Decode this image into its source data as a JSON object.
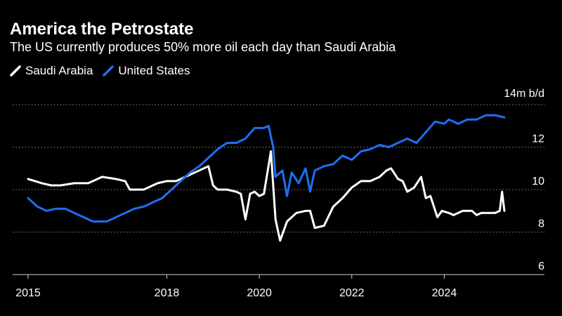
{
  "chart_data": {
    "type": "line",
    "title": "America the Petrostate",
    "subtitle": "The US currently produces 50% more oil each day than Saudi Arabia",
    "unit_label": "14m b/d",
    "xlabel": "",
    "ylabel": "",
    "ylim": [
      6,
      14
    ],
    "y_ticks": [
      6,
      8,
      10,
      12
    ],
    "x_ticks": [
      "2015",
      "2018",
      "2020",
      "2022",
      "2024"
    ],
    "xlim": [
      2015.0,
      2025.3
    ],
    "legend_position": "top-left",
    "grid": "dotted horizontal",
    "series": [
      {
        "name": "Saudi Arabia",
        "color": "#ffffff",
        "points": [
          [
            2015.0,
            10.5
          ],
          [
            2015.3,
            10.3
          ],
          [
            2015.5,
            10.2
          ],
          [
            2015.7,
            10.2
          ],
          [
            2016.0,
            10.3
          ],
          [
            2016.3,
            10.3
          ],
          [
            2016.6,
            10.6
          ],
          [
            2016.9,
            10.5
          ],
          [
            2017.1,
            10.4
          ],
          [
            2017.2,
            10.0
          ],
          [
            2017.5,
            10.0
          ],
          [
            2017.8,
            10.3
          ],
          [
            2018.0,
            10.4
          ],
          [
            2018.2,
            10.4
          ],
          [
            2018.4,
            10.6
          ],
          [
            2018.6,
            10.8
          ],
          [
            2018.8,
            11.0
          ],
          [
            2018.9,
            11.1
          ],
          [
            2019.0,
            10.2
          ],
          [
            2019.1,
            10.0
          ],
          [
            2019.3,
            10.0
          ],
          [
            2019.5,
            9.9
          ],
          [
            2019.6,
            9.8
          ],
          [
            2019.7,
            8.6
          ],
          [
            2019.8,
            9.8
          ],
          [
            2019.9,
            9.9
          ],
          [
            2020.0,
            9.7
          ],
          [
            2020.1,
            9.8
          ],
          [
            2020.25,
            11.8
          ],
          [
            2020.35,
            8.6
          ],
          [
            2020.45,
            7.6
          ],
          [
            2020.6,
            8.5
          ],
          [
            2020.8,
            8.9
          ],
          [
            2021.0,
            9.0
          ],
          [
            2021.1,
            9.0
          ],
          [
            2021.2,
            8.2
          ],
          [
            2021.4,
            8.3
          ],
          [
            2021.6,
            9.2
          ],
          [
            2021.8,
            9.6
          ],
          [
            2022.0,
            10.1
          ],
          [
            2022.2,
            10.4
          ],
          [
            2022.4,
            10.4
          ],
          [
            2022.6,
            10.6
          ],
          [
            2022.75,
            10.9
          ],
          [
            2022.85,
            11.0
          ],
          [
            2023.0,
            10.5
          ],
          [
            2023.1,
            10.4
          ],
          [
            2023.2,
            9.9
          ],
          [
            2023.35,
            10.1
          ],
          [
            2023.5,
            10.6
          ],
          [
            2023.6,
            9.6
          ],
          [
            2023.7,
            9.7
          ],
          [
            2023.85,
            8.7
          ],
          [
            2023.95,
            9.0
          ],
          [
            2024.1,
            8.9
          ],
          [
            2024.2,
            8.8
          ],
          [
            2024.4,
            9.0
          ],
          [
            2024.6,
            9.0
          ],
          [
            2024.7,
            8.8
          ],
          [
            2024.8,
            8.9
          ],
          [
            2025.0,
            8.9
          ],
          [
            2025.1,
            8.9
          ],
          [
            2025.2,
            9.0
          ],
          [
            2025.25,
            9.9
          ],
          [
            2025.3,
            9.0
          ]
        ]
      },
      {
        "name": "United States",
        "color": "#1f6ff5",
        "points": [
          [
            2015.0,
            9.6
          ],
          [
            2015.2,
            9.2
          ],
          [
            2015.4,
            9.0
          ],
          [
            2015.6,
            9.1
          ],
          [
            2015.8,
            9.1
          ],
          [
            2016.0,
            8.9
          ],
          [
            2016.2,
            8.7
          ],
          [
            2016.4,
            8.5
          ],
          [
            2016.7,
            8.5
          ],
          [
            2016.9,
            8.7
          ],
          [
            2017.1,
            8.9
          ],
          [
            2017.3,
            9.1
          ],
          [
            2017.5,
            9.2
          ],
          [
            2017.7,
            9.4
          ],
          [
            2017.9,
            9.6
          ],
          [
            2018.1,
            10.0
          ],
          [
            2018.3,
            10.4
          ],
          [
            2018.5,
            10.8
          ],
          [
            2018.7,
            11.1
          ],
          [
            2018.9,
            11.5
          ],
          [
            2019.1,
            11.9
          ],
          [
            2019.3,
            12.2
          ],
          [
            2019.5,
            12.2
          ],
          [
            2019.7,
            12.4
          ],
          [
            2019.9,
            12.9
          ],
          [
            2020.1,
            12.9
          ],
          [
            2020.2,
            13.0
          ],
          [
            2020.3,
            12.0
          ],
          [
            2020.35,
            10.6
          ],
          [
            2020.5,
            10.9
          ],
          [
            2020.6,
            9.7
          ],
          [
            2020.7,
            10.8
          ],
          [
            2020.85,
            10.3
          ],
          [
            2021.0,
            11.0
          ],
          [
            2021.1,
            9.9
          ],
          [
            2021.2,
            10.9
          ],
          [
            2021.4,
            11.1
          ],
          [
            2021.6,
            11.2
          ],
          [
            2021.8,
            11.6
          ],
          [
            2022.0,
            11.4
          ],
          [
            2022.2,
            11.8
          ],
          [
            2022.4,
            11.9
          ],
          [
            2022.6,
            12.1
          ],
          [
            2022.8,
            12.0
          ],
          [
            2023.0,
            12.2
          ],
          [
            2023.2,
            12.4
          ],
          [
            2023.4,
            12.2
          ],
          [
            2023.6,
            12.7
          ],
          [
            2023.8,
            13.2
          ],
          [
            2024.0,
            13.1
          ],
          [
            2024.1,
            13.3
          ],
          [
            2024.3,
            13.1
          ],
          [
            2024.5,
            13.3
          ],
          [
            2024.7,
            13.3
          ],
          [
            2024.9,
            13.5
          ],
          [
            2025.1,
            13.5
          ],
          [
            2025.3,
            13.4
          ]
        ]
      }
    ]
  }
}
